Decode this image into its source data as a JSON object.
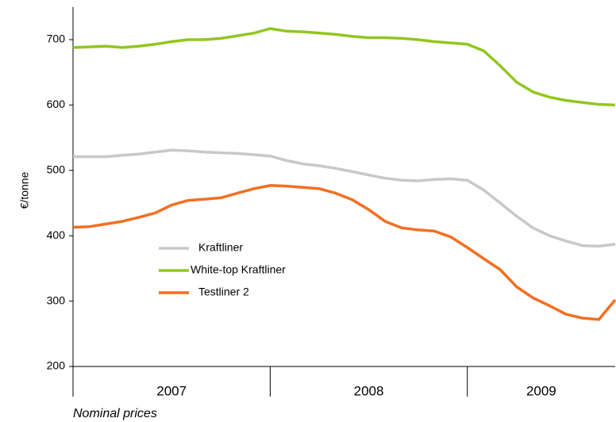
{
  "chart_data": {
    "type": "line",
    "y_label": "€/tonne",
    "footnote": "Nominal prices",
    "x": [
      2007,
      2007.083,
      2007.167,
      2007.25,
      2007.333,
      2007.417,
      2007.5,
      2007.583,
      2007.667,
      2007.75,
      2007.833,
      2007.917,
      2008,
      2008.083,
      2008.167,
      2008.25,
      2008.333,
      2008.417,
      2008.5,
      2008.583,
      2008.667,
      2008.75,
      2008.833,
      2008.917,
      2009,
      2009.083,
      2009.167,
      2009.25,
      2009.333,
      2009.417,
      2009.5,
      2009.583,
      2009.667,
      2009.75
    ],
    "xlim": [
      2007,
      2009.75
    ],
    "xticks": [
      {
        "value": 2007,
        "label": "2007"
      },
      {
        "value": 2008,
        "label": "2008"
      },
      {
        "value": 2009,
        "label": "2009"
      }
    ],
    "ylim": [
      200,
      750
    ],
    "yticks": [
      200,
      300,
      400,
      500,
      600,
      700
    ],
    "series": [
      {
        "name": "Kraftliner",
        "color": "#c8c8c8",
        "values": [
          521,
          521,
          521,
          523,
          525,
          528,
          531,
          530,
          528,
          527,
          526,
          524,
          522,
          515,
          510,
          507,
          503,
          498,
          493,
          488,
          485,
          484,
          486,
          487,
          485,
          470,
          450,
          430,
          412,
          400,
          392,
          385,
          384,
          387
        ]
      },
      {
        "name": "White-top Kraftliner",
        "color": "#92c61e",
        "values": [
          688,
          689,
          690,
          688,
          690,
          693,
          697,
          700,
          700,
          702,
          706,
          710,
          717,
          713,
          712,
          710,
          708,
          705,
          703,
          703,
          702,
          700,
          697,
          695,
          693,
          683,
          660,
          635,
          620,
          612,
          607,
          604,
          601,
          600
        ]
      },
      {
        "name": "Testliner 2",
        "color": "#f26f21",
        "values": [
          413,
          414,
          418,
          422,
          428,
          435,
          447,
          454,
          456,
          458,
          465,
          472,
          477,
          476,
          474,
          472,
          465,
          455,
          440,
          422,
          412,
          409,
          407,
          398,
          382,
          365,
          348,
          322,
          305,
          293,
          280,
          274,
          272,
          302
        ]
      }
    ]
  }
}
